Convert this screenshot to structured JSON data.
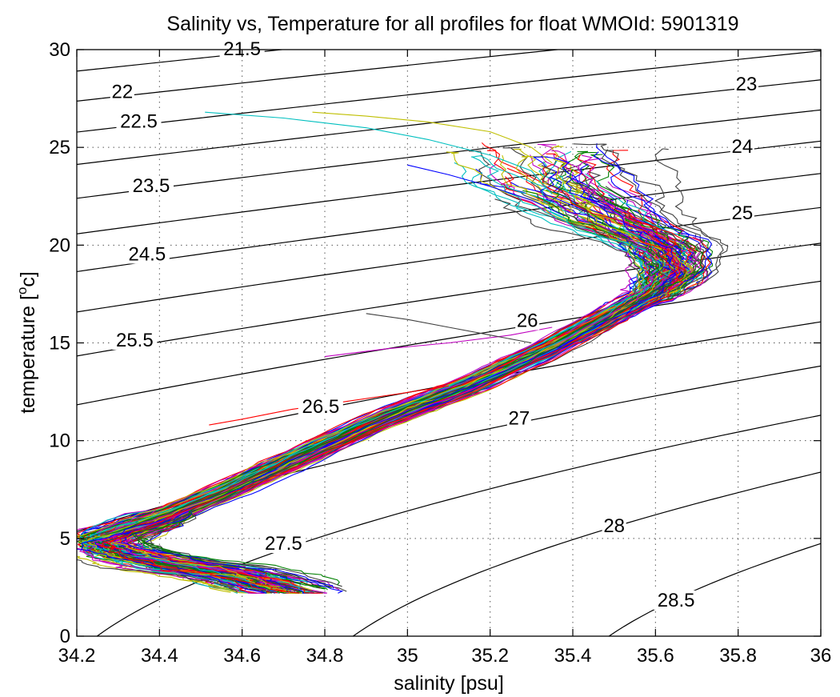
{
  "chart_data": {
    "type": "line",
    "title": "Salinity vs, Temperature for all profiles for float WMOId: 5901319",
    "xlabel": "salinity [psu]",
    "ylabel_main": "temperature [",
    "ylabel_sup": "o",
    "ylabel_end": "c]",
    "xlim": [
      34.2,
      36
    ],
    "ylim": [
      0,
      30
    ],
    "x_ticks": [
      34.2,
      34.4,
      34.6,
      34.8,
      35,
      35.2,
      35.4,
      35.6,
      35.8,
      36
    ],
    "x_tick_labels": [
      "34.2",
      "34.4",
      "34.6",
      "34.8",
      "35",
      "35.2",
      "35.4",
      "35.6",
      "35.8",
      "36"
    ],
    "y_ticks": [
      0,
      5,
      10,
      15,
      20,
      25,
      30
    ],
    "y_tick_labels": [
      "0",
      "5",
      "10",
      "15",
      "20",
      "25",
      "30"
    ],
    "grid": true,
    "density_contours": [
      {
        "label": "21.5",
        "label_pos": [
          34.6,
          29.8
        ]
      },
      {
        "label": "22",
        "label_pos": [
          34.31,
          27.6
        ]
      },
      {
        "label": "22.5",
        "label_pos": [
          34.35,
          26.1
        ]
      },
      {
        "label": "23",
        "label_pos": [
          35.82,
          28.0
        ]
      },
      {
        "label": "23.5",
        "label_pos": [
          34.38,
          22.8
        ]
      },
      {
        "label": "24",
        "label_pos": [
          35.81,
          24.8
        ]
      },
      {
        "label": "24.5",
        "label_pos": [
          34.37,
          19.3
        ]
      },
      {
        "label": "25",
        "label_pos": [
          35.81,
          21.4
        ]
      },
      {
        "label": "25.5",
        "label_pos": [
          34.34,
          14.9
        ]
      },
      {
        "label": "26",
        "label_pos": [
          35.29,
          15.9
        ]
      },
      {
        "label": "26.5",
        "label_pos": [
          34.79,
          11.5
        ]
      },
      {
        "label": "27",
        "label_pos": [
          35.27,
          10.9
        ]
      },
      {
        "label": "27.5",
        "label_pos": [
          34.7,
          4.5
        ]
      },
      {
        "label": "28",
        "label_pos": [
          35.5,
          5.4
        ]
      },
      {
        "label": "28.5",
        "label_pos": [
          35.65,
          1.6
        ]
      }
    ],
    "profile_colors": [
      "#0000ff",
      "#008000",
      "#ff0000",
      "#00bfbf",
      "#bf00bf",
      "#bfbf00",
      "#404040"
    ],
    "mean_profile": {
      "s": [
        34.7,
        34.58,
        34.4,
        34.3,
        34.26,
        34.4,
        34.6,
        34.75,
        34.95,
        35.15,
        35.35,
        35.5,
        35.6,
        35.65,
        35.62,
        35.5,
        35.38,
        35.34
      ],
      "t": [
        2.4,
        3.2,
        3.8,
        4.4,
        5.0,
        6.0,
        7.8,
        9.3,
        11.2,
        12.8,
        14.8,
        16.5,
        17.6,
        18.7,
        20.0,
        21.3,
        23.0,
        24.8
      ]
    }
  }
}
